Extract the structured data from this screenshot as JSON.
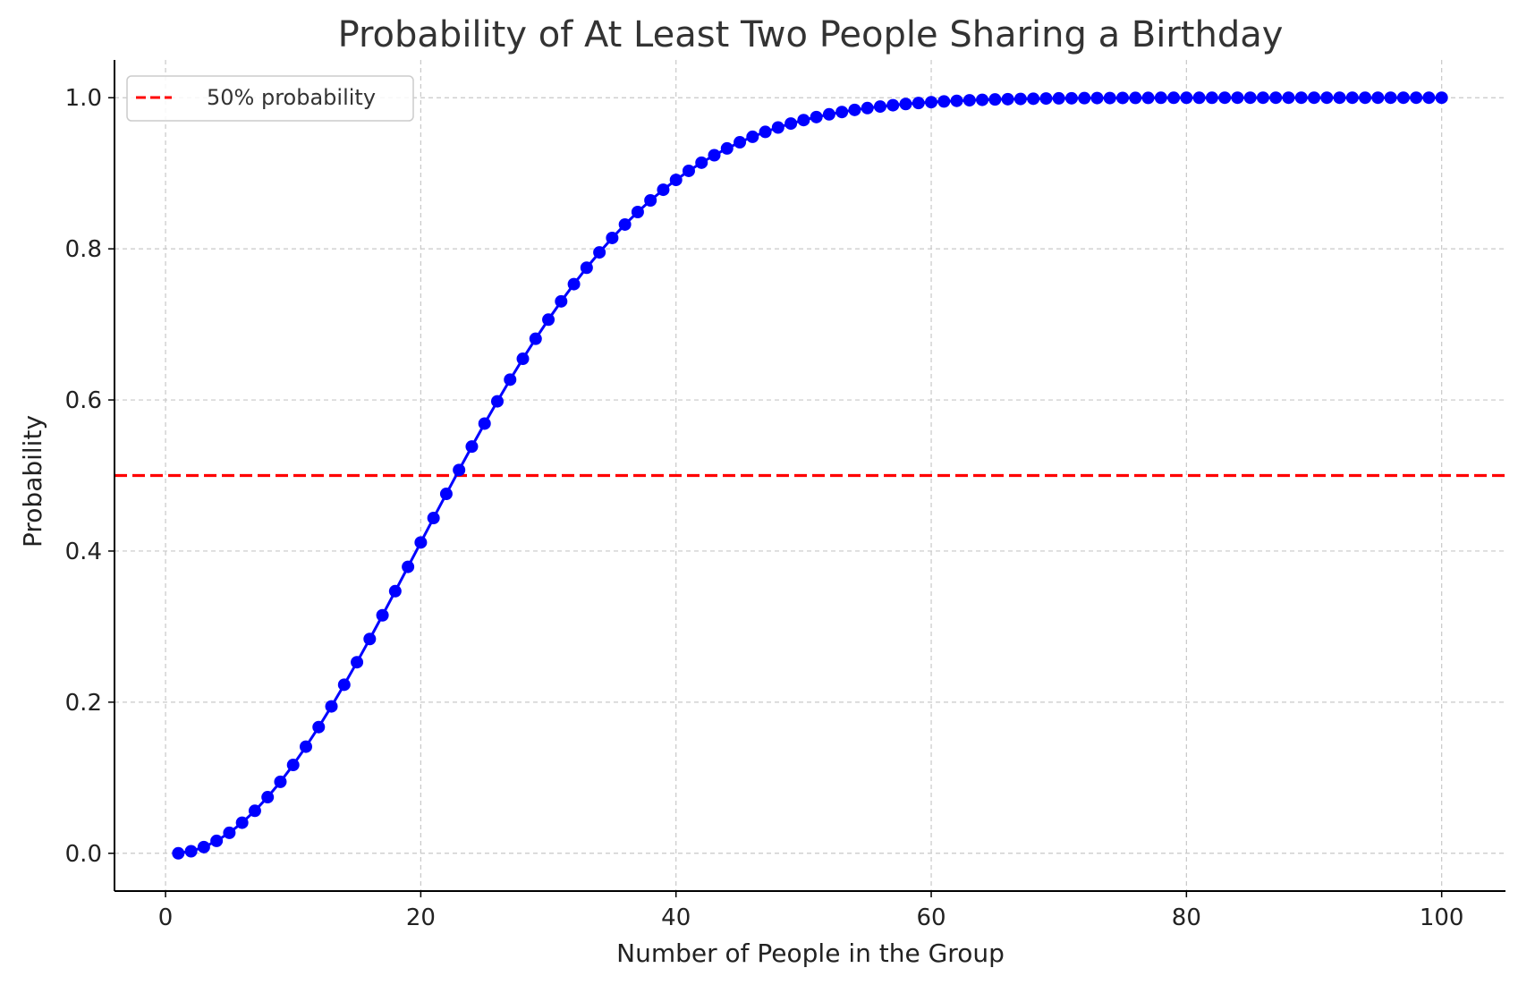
{
  "chart_data": {
    "type": "line",
    "title": "Probability of At Least Two People Sharing a Birthday",
    "xlabel": "Number of People in the Group",
    "ylabel": "Probability",
    "xlim": [
      -4,
      105
    ],
    "ylim": [
      -0.05,
      1.05
    ],
    "xticks": [
      0,
      20,
      40,
      60,
      80,
      100
    ],
    "xtick_labels": [
      "0",
      "20",
      "40",
      "60",
      "80",
      "100"
    ],
    "yticks": [
      0.0,
      0.2,
      0.4,
      0.6,
      0.8,
      1.0
    ],
    "ytick_labels": [
      "0.0",
      "0.2",
      "0.4",
      "0.6",
      "0.8",
      "1.0"
    ],
    "grid": true,
    "legend_position": "top-left",
    "series": [
      {
        "color": "#0000ff",
        "marker": "circle",
        "x": [
          1,
          2,
          3,
          4,
          5,
          6,
          7,
          8,
          9,
          10,
          11,
          12,
          13,
          14,
          15,
          16,
          17,
          18,
          19,
          20,
          21,
          22,
          23,
          24,
          25,
          26,
          27,
          28,
          29,
          30,
          31,
          32,
          33,
          34,
          35,
          36,
          37,
          38,
          39,
          40,
          41,
          42,
          43,
          44,
          45,
          46,
          47,
          48,
          49,
          50,
          51,
          52,
          53,
          54,
          55,
          56,
          57,
          58,
          59,
          60,
          61,
          62,
          63,
          64,
          65,
          66,
          67,
          68,
          69,
          70,
          71,
          72,
          73,
          74,
          75,
          76,
          77,
          78,
          79,
          80,
          81,
          82,
          83,
          84,
          85,
          86,
          87,
          88,
          89,
          90,
          91,
          92,
          93,
          94,
          95,
          96,
          97,
          98,
          99,
          100
        ],
        "values": [
          0.0,
          0.0027,
          0.0082,
          0.0164,
          0.0271,
          0.0405,
          0.0562,
          0.0743,
          0.0946,
          0.1169,
          0.1411,
          0.167,
          0.1944,
          0.2231,
          0.2529,
          0.2836,
          0.315,
          0.3469,
          0.3791,
          0.4114,
          0.4437,
          0.4757,
          0.5073,
          0.5383,
          0.5687,
          0.5982,
          0.6269,
          0.6545,
          0.681,
          0.7063,
          0.7305,
          0.7533,
          0.775,
          0.7953,
          0.8144,
          0.8322,
          0.8487,
          0.8641,
          0.8782,
          0.8912,
          0.9032,
          0.914,
          0.9239,
          0.9329,
          0.941,
          0.9483,
          0.9548,
          0.9606,
          0.9658,
          0.9704,
          0.9744,
          0.978,
          0.9811,
          0.9839,
          0.9863,
          0.9883,
          0.9901,
          0.9917,
          0.993,
          0.9941,
          0.9951,
          0.9959,
          0.9966,
          0.9972,
          0.9977,
          0.9981,
          0.9984,
          0.9987,
          0.999,
          0.9992,
          0.9993,
          0.9995,
          0.9996,
          0.9996,
          0.9997,
          0.9998,
          0.9998,
          0.9999,
          0.9999,
          0.9999,
          0.9999,
          0.9999,
          1.0,
          1.0,
          1.0,
          1.0,
          1.0,
          1.0,
          1.0,
          1.0,
          1.0,
          1.0,
          1.0,
          1.0,
          1.0,
          1.0,
          1.0,
          1.0,
          1.0,
          1.0
        ]
      },
      {
        "name": "50% probability",
        "color": "#ff0000",
        "style": "dashed",
        "y": 0.5
      }
    ]
  }
}
